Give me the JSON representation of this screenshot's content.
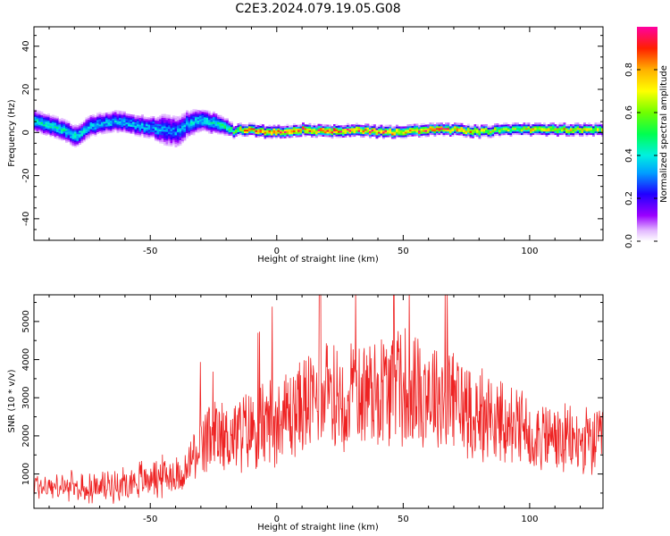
{
  "title": "C2E3.2024.079.19.05.G08",
  "chart_data": [
    {
      "type": "heatmap",
      "xlabel": "Height of straight line (km)",
      "ylabel": "Frequency (Hz)",
      "xlim": [
        -96,
        129
      ],
      "ylim": [
        -50,
        49
      ],
      "xticks": [
        -50,
        0,
        50,
        100
      ],
      "yticks": [
        -40,
        -20,
        0,
        20,
        40
      ],
      "colorbar": {
        "label": "Normalized spectral amplitude",
        "range": [
          0,
          1
        ],
        "ticks": [
          0.0,
          0.2,
          0.4,
          0.6,
          0.8
        ],
        "tick_labels": [
          "0.0",
          "0.2",
          "0.4",
          "0.6",
          "0.8"
        ]
      },
      "ridge": {
        "x": [
          -96,
          -90,
          -85,
          -80,
          -75,
          -70,
          -65,
          -60,
          -55,
          -50,
          -45,
          -40,
          -35,
          -30,
          -25,
          -20,
          -17,
          -15,
          -10,
          -5,
          0,
          10,
          20,
          30,
          40,
          50,
          60,
          70,
          80,
          90,
          100,
          110,
          120,
          129
        ],
        "frequency_hz": [
          5,
          3,
          1,
          -2,
          2,
          4,
          5,
          4,
          3,
          2,
          1,
          0,
          4,
          5,
          4,
          2,
          0,
          1,
          1,
          0,
          0,
          1,
          0,
          1,
          0,
          0,
          1,
          1,
          0,
          1,
          1,
          1,
          1,
          1
        ],
        "halfwidth_hz": [
          4,
          4,
          4,
          4,
          4,
          4,
          4,
          4,
          4,
          4,
          6,
          6,
          5,
          4,
          4,
          3,
          2,
          2,
          2,
          2,
          2,
          2,
          2,
          2,
          2,
          2,
          2,
          2,
          2,
          2,
          2,
          2,
          2,
          2
        ],
        "peak_amplitude": [
          0.4,
          0.4,
          0.4,
          0.4,
          0.35,
          0.35,
          0.35,
          0.35,
          0.35,
          0.35,
          0.3,
          0.3,
          0.35,
          0.4,
          0.4,
          0.45,
          0.5,
          0.7,
          0.8,
          0.8,
          0.85,
          0.85,
          0.9,
          0.85,
          0.85,
          0.8,
          0.85,
          0.8,
          0.7,
          0.6,
          0.7,
          0.7,
          0.7,
          0.7
        ]
      }
    },
    {
      "type": "line",
      "xlabel": "Height of straight line (km)",
      "ylabel": "SNR (10 * v/v)",
      "xlim": [
        -96,
        129
      ],
      "ylim": [
        100,
        5700
      ],
      "xticks": [
        -50,
        0,
        50,
        100
      ],
      "yticks": [
        1000,
        2000,
        3000,
        4000,
        5000
      ],
      "color": "#ee2222",
      "series": [
        {
          "x": [
            -96,
            -85,
            -75,
            -65,
            -55,
            -45,
            -36,
            -33,
            -25,
            -15,
            -5,
            5,
            15,
            25,
            35,
            45,
            52,
            60,
            70,
            80,
            90,
            100,
            110,
            120,
            129
          ],
          "snr": [
            700,
            650,
            600,
            700,
            850,
            950,
            1000,
            1500,
            1900,
            2050,
            2300,
            2600,
            2950,
            3050,
            3200,
            3300,
            3300,
            3200,
            2900,
            2600,
            2300,
            2100,
            1900,
            1800,
            1800
          ]
        }
      ]
    }
  ]
}
